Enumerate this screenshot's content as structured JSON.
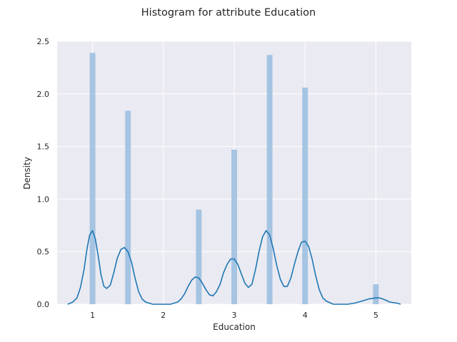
{
  "chart_data": {
    "type": "bar",
    "title": "Histogram for attribute Education",
    "xlabel": "Education",
    "ylabel": "Density",
    "xlim": [
      0.5,
      5.5
    ],
    "ylim": [
      0,
      2.5
    ],
    "xticks": [
      1,
      2,
      3,
      4,
      5
    ],
    "yticks": [
      0.0,
      0.5,
      1.0,
      1.5,
      2.0,
      2.5
    ],
    "ytick_labels": [
      "0.0",
      "0.5",
      "1.0",
      "1.5",
      "2.0",
      "2.5"
    ],
    "grid": true,
    "background_color": "#eaeaf2",
    "bar_color": "#9dc0e0",
    "line_color": "#1f77b4",
    "histogram": {
      "bins": [
        {
          "x": 1.0,
          "density": 2.39
        },
        {
          "x": 1.5,
          "density": 1.84
        },
        {
          "x": 2.5,
          "density": 0.9
        },
        {
          "x": 3.0,
          "density": 1.47
        },
        {
          "x": 3.5,
          "density": 2.37
        },
        {
          "x": 4.0,
          "density": 2.06
        },
        {
          "x": 5.0,
          "density": 0.19
        }
      ]
    },
    "kde": {
      "x": [
        0.65,
        0.72,
        0.78,
        0.83,
        0.88,
        0.92,
        0.96,
        1.0,
        1.04,
        1.08,
        1.12,
        1.16,
        1.2,
        1.25,
        1.3,
        1.35,
        1.4,
        1.45,
        1.5,
        1.55,
        1.6,
        1.65,
        1.7,
        1.75,
        1.8,
        1.85,
        1.9,
        2.0,
        2.1,
        2.2,
        2.25,
        2.3,
        2.35,
        2.4,
        2.45,
        2.5,
        2.55,
        2.6,
        2.65,
        2.7,
        2.75,
        2.8,
        2.85,
        2.9,
        2.95,
        3.0,
        3.05,
        3.1,
        3.15,
        3.2,
        3.25,
        3.3,
        3.35,
        3.4,
        3.45,
        3.5,
        3.55,
        3.6,
        3.65,
        3.7,
        3.75,
        3.8,
        3.85,
        3.9,
        3.95,
        4.0,
        4.05,
        4.1,
        4.15,
        4.2,
        4.25,
        4.3,
        4.4,
        4.5,
        4.6,
        4.7,
        4.8,
        4.9,
        5.0,
        5.05,
        5.1,
        5.2,
        5.3,
        5.35
      ],
      "y": [
        0.0,
        0.02,
        0.06,
        0.16,
        0.33,
        0.52,
        0.66,
        0.7,
        0.62,
        0.46,
        0.28,
        0.17,
        0.15,
        0.18,
        0.3,
        0.44,
        0.52,
        0.54,
        0.5,
        0.4,
        0.25,
        0.12,
        0.05,
        0.02,
        0.01,
        0.0,
        0.0,
        0.0,
        0.0,
        0.02,
        0.05,
        0.1,
        0.17,
        0.23,
        0.26,
        0.25,
        0.2,
        0.14,
        0.09,
        0.08,
        0.12,
        0.19,
        0.3,
        0.38,
        0.43,
        0.43,
        0.38,
        0.29,
        0.2,
        0.16,
        0.19,
        0.33,
        0.5,
        0.64,
        0.7,
        0.66,
        0.53,
        0.37,
        0.24,
        0.17,
        0.17,
        0.25,
        0.38,
        0.5,
        0.59,
        0.6,
        0.55,
        0.43,
        0.27,
        0.14,
        0.06,
        0.03,
        0.0,
        0.0,
        0.0,
        0.01,
        0.03,
        0.05,
        0.06,
        0.06,
        0.05,
        0.02,
        0.01,
        0.0
      ]
    }
  }
}
